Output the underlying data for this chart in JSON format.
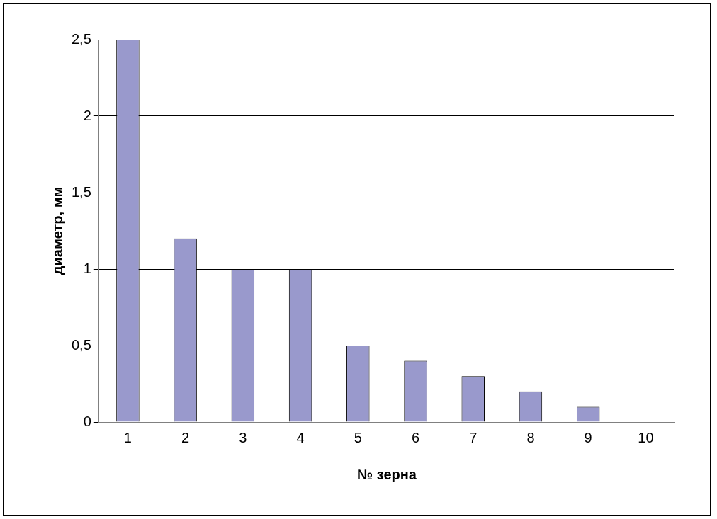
{
  "chart_data": {
    "type": "bar",
    "xlabel": "№ зерна",
    "ylabel": "диаметр, мм",
    "categories": [
      "1",
      "2",
      "3",
      "4",
      "5",
      "6",
      "7",
      "8",
      "9",
      "10"
    ],
    "values": [
      2.5,
      1.2,
      1,
      1,
      0.5,
      0.4,
      0.3,
      0.2,
      0.1,
      0
    ],
    "color": "#9999cc",
    "ylim": [
      0,
      2.5
    ],
    "yticks": [
      0,
      {
        "value": 0.5,
        "label": "0,5"
      },
      1,
      {
        "value": 1.5,
        "label": "1,5"
      },
      2,
      {
        "value": 2.5,
        "label": "2,5"
      }
    ],
    "grid": "y",
    "legend": false
  }
}
